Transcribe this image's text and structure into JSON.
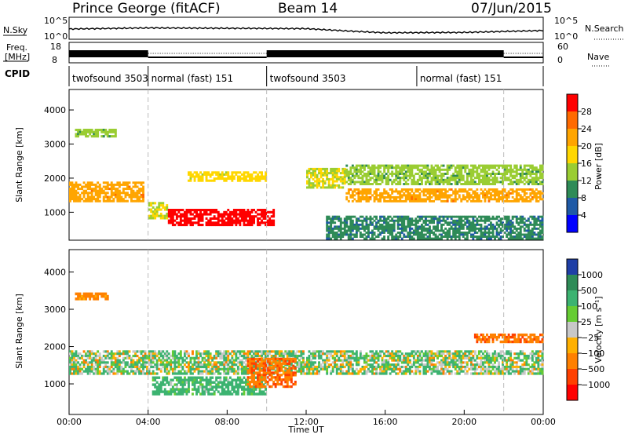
{
  "header": {
    "station": "Prince George (fitACF)",
    "beam": "Beam 14",
    "date": "07/Jun/2015"
  },
  "strip_labels": {
    "nsky": "N.Sky",
    "nsearch": "N.Search",
    "freq_line1": "Freq.",
    "freq_line2": "[MHz]",
    "nave": "Nave",
    "cpid": "CPID",
    "nsky_ticks": [
      "10^5",
      "10^0"
    ],
    "nsearch_ticks": [
      "10^5",
      "10^0"
    ],
    "freq_ticks": [
      "18",
      "8"
    ],
    "nave_ticks": [
      "60",
      "0"
    ]
  },
  "cpid_segments": [
    {
      "label": "twofsound 3503",
      "start_h": 0,
      "end_h": 4
    },
    {
      "label": "normal (fast) 151",
      "start_h": 4,
      "end_h": 10
    },
    {
      "label": "twofsound 3503",
      "start_h": 10,
      "end_h": 17.6
    },
    {
      "label": "normal (fast) 151",
      "start_h": 17.6,
      "end_h": 22
    }
  ],
  "power_colorbar": {
    "label": "Power [dB]",
    "ticks": [
      "28",
      "24",
      "20",
      "16",
      "12",
      "8",
      "4"
    ],
    "colors": [
      "#ff0000",
      "#ff6a00",
      "#ffa500",
      "#ffd700",
      "#9acd32",
      "#2e8b57",
      "#1f5aa6",
      "#0000ff"
    ]
  },
  "velocity_colorbar": {
    "label": "Velocity [m s⁻¹]",
    "ticks": [
      "1000",
      "500",
      "100",
      "25",
      "−25",
      "−100",
      "−500",
      "−1000"
    ],
    "colors": [
      "#1f3fa6",
      "#2e8b57",
      "#3cb371",
      "#66cc33",
      "#c8c8c8",
      "#ffb000",
      "#ff8000",
      "#ff4000",
      "#ff0000"
    ]
  },
  "axes": {
    "xlabel": "Time UT",
    "ylabel": "Slant Range [km]",
    "xticks": [
      "00:00",
      "04:00",
      "08:00",
      "12:00",
      "16:00",
      "20:00",
      "00:00"
    ],
    "yticks": [
      "4000",
      "3000",
      "2000",
      "1000"
    ]
  },
  "chart_data": {
    "type": "heatmap",
    "title": "Prince George (fitACF)  Beam 14  07/Jun/2015",
    "xlabel": "Time UT",
    "ylabel": "Slant Range [km]",
    "xlim_hours": [
      0,
      24
    ],
    "ylim_km": [
      180,
      4600
    ],
    "grid": false,
    "panels": [
      {
        "quantity": "Power [dB]",
        "colorbar_range": [
          0,
          30
        ],
        "regions": [
          {
            "t_start": 0.3,
            "t_end": 2.4,
            "r_min": 3200,
            "r_max": 3450,
            "value": 12
          },
          {
            "t_start": 0.0,
            "t_end": 3.8,
            "r_min": 1300,
            "r_max": 1900,
            "value": 20
          },
          {
            "t_start": 4.0,
            "t_end": 5.0,
            "r_min": 800,
            "r_max": 1300,
            "value": 14
          },
          {
            "t_start": 5.0,
            "t_end": 10.4,
            "r_min": 600,
            "r_max": 1100,
            "value": 28
          },
          {
            "t_start": 6.0,
            "t_end": 10.0,
            "r_min": 1900,
            "r_max": 2200,
            "value": 16
          },
          {
            "t_start": 12.0,
            "t_end": 14.0,
            "r_min": 1700,
            "r_max": 2300,
            "value": 14
          },
          {
            "t_start": 14.0,
            "t_end": 24.0,
            "r_min": 1300,
            "r_max": 1700,
            "value": 20
          },
          {
            "t_start": 14.0,
            "t_end": 24.0,
            "r_min": 1800,
            "r_max": 2400,
            "value": 12
          },
          {
            "t_start": 13.0,
            "t_end": 24.0,
            "r_min": 200,
            "r_max": 900,
            "value": 8
          }
        ]
      },
      {
        "quantity": "Velocity [m s⁻¹]",
        "colorbar_range": [
          -1000,
          1000
        ],
        "regions": [
          {
            "t_start": 0.3,
            "t_end": 2.0,
            "r_min": 3250,
            "r_max": 3450,
            "value": -200
          },
          {
            "t_start": 0.0,
            "t_end": 24.0,
            "r_min": 1250,
            "r_max": 1900,
            "value": 0
          },
          {
            "t_start": 4.2,
            "t_end": 10.0,
            "r_min": 700,
            "r_max": 1200,
            "value": 100
          },
          {
            "t_start": 9.0,
            "t_end": 11.5,
            "r_min": 900,
            "r_max": 1700,
            "value": -300
          },
          {
            "t_start": 20.5,
            "t_end": 24.0,
            "r_min": 2100,
            "r_max": 2350,
            "value": -300
          }
        ]
      }
    ],
    "sky_noise_log": [
      {
        "t": 0,
        "v": 2.3
      },
      {
        "t": 4,
        "v": 2.6
      },
      {
        "t": 8,
        "v": 2.5
      },
      {
        "t": 12,
        "v": 2.4
      },
      {
        "t": 14,
        "v": 1.8
      },
      {
        "t": 16,
        "v": 1.3
      },
      {
        "t": 20,
        "v": 1.4
      },
      {
        "t": 24,
        "v": 1.9
      }
    ],
    "frequency_mhz": [
      {
        "t_start": 0,
        "t_end": 4,
        "value": 11
      },
      {
        "t_start": 4,
        "t_end": 10,
        "value": 10.5
      },
      {
        "t_start": 10,
        "t_end": 22,
        "value": 11
      },
      {
        "t_start": 22,
        "t_end": 24,
        "value": 10.5
      }
    ]
  }
}
